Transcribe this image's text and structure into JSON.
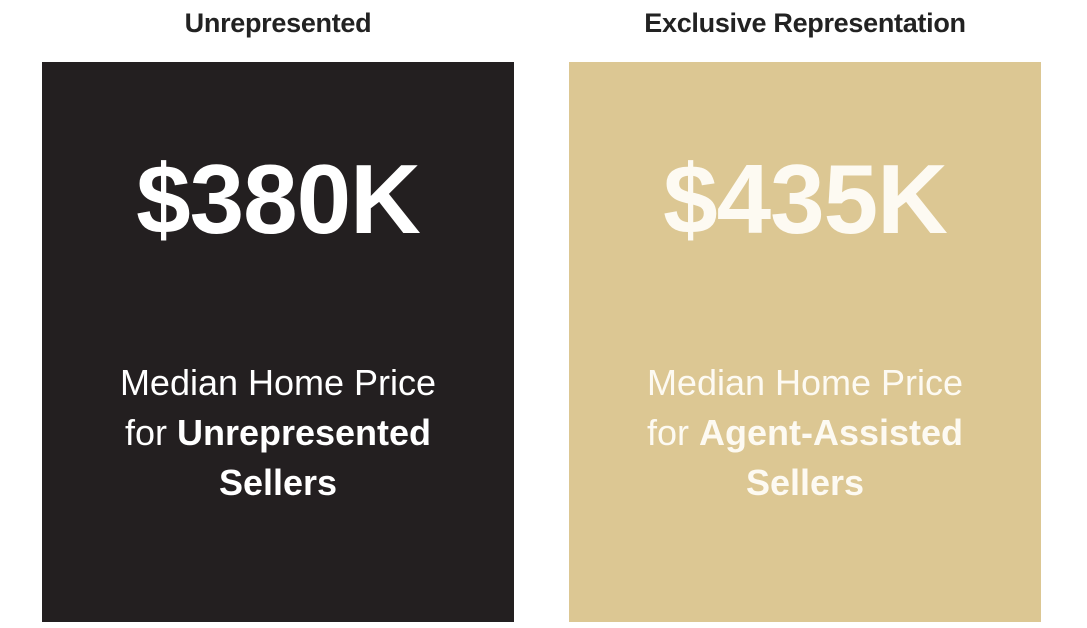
{
  "cards": [
    {
      "heading": "Unrepresented",
      "value": "$380K",
      "description_line1": "Median Home Price",
      "description_lead": "for",
      "description_highlight": "Unrepresented Sellers"
    },
    {
      "heading": "Exclusive Representation",
      "value": "$435K",
      "description_line1": "Median Home Price",
      "description_lead": "for",
      "description_highlight": "Agent-Assisted Sellers"
    }
  ]
}
